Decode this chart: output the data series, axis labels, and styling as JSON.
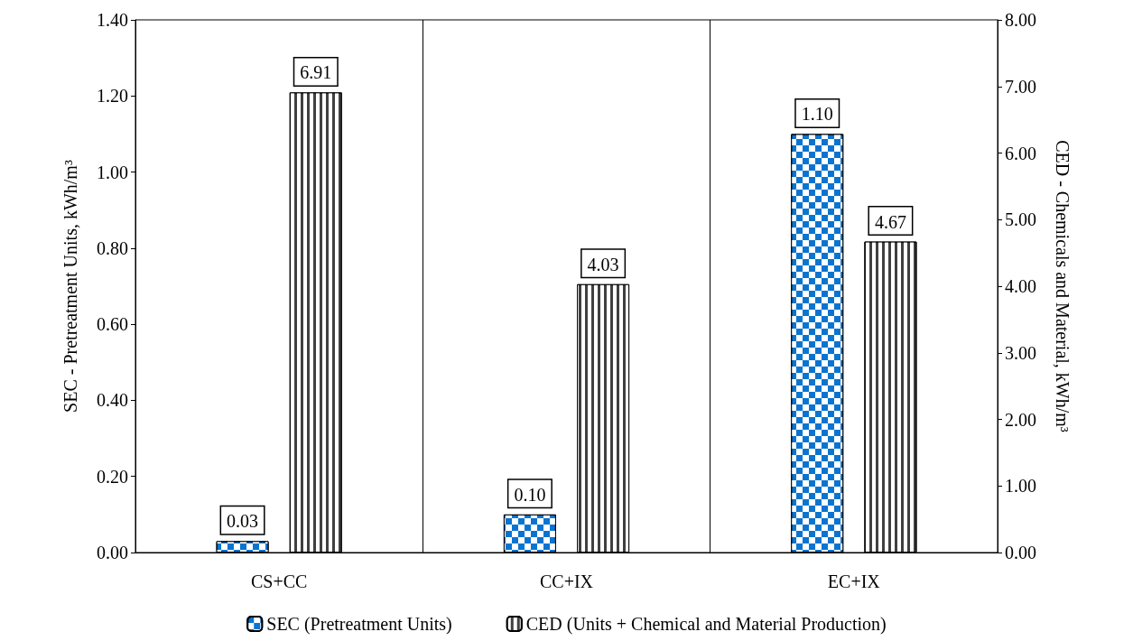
{
  "chart_data": {
    "type": "bar",
    "categories": [
      "CS+CC",
      "CC+IX",
      "EC+IX"
    ],
    "series": [
      {
        "name": "SEC (Pretreatment Units)",
        "color": "#0a74d0",
        "values": [
          0.03,
          0.1,
          1.1
        ],
        "value_labels": [
          "0.03",
          "0.10",
          "1.10"
        ]
      },
      {
        "name": "CED (Units + Chemical and Material Production)",
        "color": "#404040",
        "values": [
          6.91,
          4.03,
          4.67
        ],
        "value_labels": [
          "6.91",
          "4.03",
          "4.67"
        ],
        "axis": "y2"
      }
    ],
    "ylabel": "SEC - Pretreatment Units, kWh/m³",
    "y2label": "CED - Chemicals and Material, kWh/m³",
    "ylim": [
      0,
      1.4
    ],
    "yticks": [
      {
        "value": 0,
        "label": "0.00"
      },
      {
        "value": 0.2,
        "label": "0.20"
      },
      {
        "value": 0.4,
        "label": "0.40"
      },
      {
        "value": 0.6,
        "label": "0.60"
      },
      {
        "value": 0.8,
        "label": "0.80"
      },
      {
        "value": 1.0,
        "label": "1.00"
      },
      {
        "value": 1.2,
        "label": "1.20"
      },
      {
        "value": 1.4,
        "label": "1.40"
      }
    ],
    "y2lim": [
      0,
      8
    ],
    "y2ticks": [
      {
        "value": 0,
        "label": "0.00"
      },
      {
        "value": 1,
        "label": "1.00"
      },
      {
        "value": 2,
        "label": "2.00"
      },
      {
        "value": 3,
        "label": "3.00"
      },
      {
        "value": 4,
        "label": "4.00"
      },
      {
        "value": 5,
        "label": "5.00"
      },
      {
        "value": 6,
        "label": "6.00"
      },
      {
        "value": 7,
        "label": "7.00"
      },
      {
        "value": 8,
        "label": "8.00"
      }
    ],
    "grid": "x",
    "legend": "bottom"
  }
}
